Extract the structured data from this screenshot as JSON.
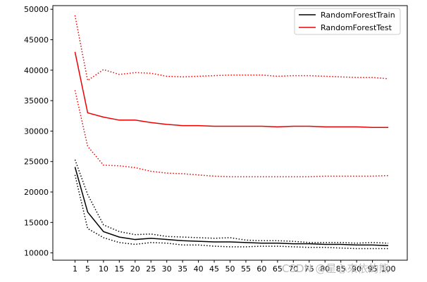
{
  "chart_data": {
    "type": "line",
    "title": "",
    "xlabel": "",
    "ylabel": "",
    "x": [
      1,
      5,
      10,
      15,
      20,
      25,
      30,
      35,
      40,
      45,
      50,
      55,
      60,
      65,
      70,
      75,
      80,
      85,
      90,
      95,
      100
    ],
    "x_ticks": [
      "1",
      "5",
      "10",
      "15",
      "20",
      "25",
      "30",
      "35",
      "40",
      "45",
      "50",
      "55",
      "60",
      "65",
      "70",
      "75",
      "80",
      "85",
      "90",
      "95",
      "100"
    ],
    "y_ticks": [
      10000,
      15000,
      20000,
      25000,
      30000,
      35000,
      40000,
      45000,
      50000
    ],
    "xlim": [
      -6,
      106
    ],
    "ylim": [
      8800,
      50600
    ],
    "grid": false,
    "legend_position": "top-right",
    "series": [
      {
        "name": "RandomForestTrain",
        "color": "#000000",
        "style": "solid",
        "values": [
          24100,
          16700,
          13500,
          12600,
          12200,
          12400,
          12200,
          12000,
          11900,
          11800,
          11800,
          11700,
          11600,
          11600,
          11500,
          11500,
          11400,
          11400,
          11300,
          11300,
          11200
        ]
      },
      {
        "name": "",
        "color": "#000000",
        "style": "dotted",
        "values": [
          25300,
          19600,
          14600,
          13500,
          13000,
          13100,
          12700,
          12600,
          12500,
          12400,
          12500,
          12100,
          12000,
          12000,
          11900,
          11700,
          11700,
          11700,
          11600,
          11700,
          11600
        ]
      },
      {
        "name": "",
        "color": "#000000",
        "style": "dotted",
        "values": [
          22800,
          14000,
          12500,
          11700,
          11400,
          11700,
          11600,
          11300,
          11300,
          11100,
          11000,
          11000,
          11100,
          11100,
          11000,
          10900,
          10900,
          10800,
          10700,
          10700,
          10700
        ]
      },
      {
        "name": "RandomForestTest",
        "color": "#ee0000",
        "style": "solid",
        "values": [
          43000,
          33000,
          32300,
          31800,
          31800,
          31400,
          31100,
          30900,
          30900,
          30800,
          30800,
          30800,
          30800,
          30700,
          30800,
          30800,
          30700,
          30700,
          30700,
          30600,
          30600
        ]
      },
      {
        "name": "",
        "color": "#ee0000",
        "style": "dotted",
        "values": [
          49000,
          38300,
          40100,
          39300,
          39600,
          39500,
          39000,
          38900,
          39000,
          39100,
          39200,
          39200,
          39200,
          39000,
          39100,
          39100,
          39000,
          38900,
          38800,
          38800,
          38600
        ]
      },
      {
        "name": "",
        "color": "#ee0000",
        "style": "dotted",
        "values": [
          36700,
          27500,
          24400,
          24300,
          24000,
          23400,
          23100,
          23000,
          22800,
          22600,
          22500,
          22500,
          22500,
          22500,
          22500,
          22500,
          22600,
          22600,
          22600,
          22600,
          22700
        ]
      }
    ]
  },
  "watermark": "CSDN @星心來依的熊"
}
